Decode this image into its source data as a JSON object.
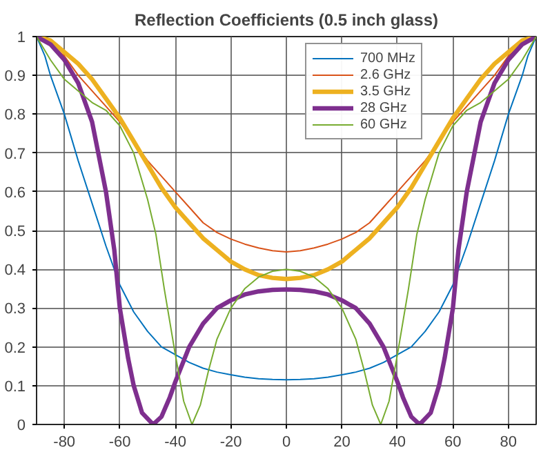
{
  "chart_data": {
    "type": "line",
    "title": "Reflection Coefficients (0.5 inch glass)",
    "xlim": [
      -90,
      90
    ],
    "ylim": [
      0,
      1
    ],
    "xticks": [
      -80,
      -60,
      -40,
      -20,
      0,
      20,
      40,
      60,
      80
    ],
    "yticks": [
      0,
      0.1,
      0.2,
      0.3,
      0.4,
      0.5,
      0.6,
      0.7,
      0.8,
      0.9,
      1
    ],
    "grid": true,
    "legend": "top right",
    "marker": "none",
    "line_style": "solid",
    "series": [
      {
        "name": "700 MHz",
        "color": "#0072bd",
        "x": [
          -90,
          -87,
          -85,
          -80,
          -75,
          -70,
          -65,
          -60,
          -55,
          -50,
          -45,
          -40,
          -35,
          -30,
          -25,
          -20,
          -15,
          -10,
          -5,
          0,
          5,
          10,
          15,
          20,
          25,
          30,
          35,
          40,
          45,
          50,
          55,
          60,
          65,
          70,
          75,
          80,
          85,
          87,
          90
        ],
        "values": [
          1,
          0.95,
          0.9,
          0.8,
          0.68,
          0.57,
          0.46,
          0.36,
          0.29,
          0.24,
          0.2,
          0.18,
          0.16,
          0.145,
          0.135,
          0.128,
          0.122,
          0.118,
          0.116,
          0.115,
          0.116,
          0.118,
          0.122,
          0.128,
          0.135,
          0.145,
          0.16,
          0.18,
          0.2,
          0.24,
          0.29,
          0.36,
          0.46,
          0.57,
          0.68,
          0.8,
          0.9,
          0.95,
          1
        ]
      },
      {
        "name": "2.6 GHz",
        "color": "#d95319",
        "x": [
          -90,
          -85,
          -80,
          -75,
          -70,
          -65,
          -60,
          -55,
          -50,
          -45,
          -40,
          -35,
          -30,
          -25,
          -20,
          -15,
          -10,
          -5,
          0,
          5,
          10,
          15,
          20,
          25,
          30,
          35,
          40,
          45,
          50,
          55,
          60,
          65,
          70,
          75,
          80,
          85,
          90
        ],
        "values": [
          1,
          0.98,
          0.95,
          0.9,
          0.86,
          0.82,
          0.78,
          0.73,
          0.68,
          0.64,
          0.6,
          0.56,
          0.52,
          0.495,
          0.478,
          0.465,
          0.455,
          0.448,
          0.445,
          0.448,
          0.455,
          0.465,
          0.478,
          0.495,
          0.52,
          0.56,
          0.6,
          0.64,
          0.68,
          0.73,
          0.78,
          0.82,
          0.86,
          0.9,
          0.95,
          0.98,
          1
        ]
      },
      {
        "name": "3.5 GHz",
        "color": "#edb120",
        "x": [
          -90,
          -85,
          -80,
          -75,
          -70,
          -65,
          -60,
          -55,
          -50,
          -45,
          -40,
          -35,
          -30,
          -25,
          -20,
          -15,
          -10,
          -5,
          0,
          5,
          10,
          15,
          20,
          25,
          30,
          35,
          40,
          45,
          50,
          55,
          60,
          65,
          70,
          75,
          80,
          85,
          90
        ],
        "values": [
          1,
          0.99,
          0.96,
          0.93,
          0.89,
          0.84,
          0.79,
          0.73,
          0.67,
          0.61,
          0.56,
          0.52,
          0.48,
          0.45,
          0.42,
          0.4,
          0.385,
          0.378,
          0.375,
          0.378,
          0.385,
          0.4,
          0.42,
          0.45,
          0.48,
          0.52,
          0.56,
          0.61,
          0.67,
          0.73,
          0.79,
          0.84,
          0.89,
          0.93,
          0.96,
          0.99,
          1
        ]
      },
      {
        "name": "28 GHz",
        "color": "#7e2f8e",
        "x": [
          -90,
          -85,
          -80,
          -75,
          -70,
          -65,
          -62,
          -60,
          -57,
          -55,
          -52,
          -48,
          -45,
          -42,
          -40,
          -35,
          -30,
          -25,
          -20,
          -15,
          -10,
          -5,
          0,
          5,
          10,
          15,
          20,
          25,
          30,
          35,
          40,
          42,
          45,
          48,
          52,
          55,
          57,
          60,
          62,
          65,
          70,
          75,
          80,
          85,
          90
        ],
        "values": [
          1,
          0.98,
          0.94,
          0.88,
          0.78,
          0.6,
          0.45,
          0.3,
          0.17,
          0.1,
          0.03,
          0,
          0.02,
          0.07,
          0.11,
          0.2,
          0.26,
          0.3,
          0.32,
          0.335,
          0.343,
          0.347,
          0.348,
          0.347,
          0.343,
          0.335,
          0.32,
          0.3,
          0.26,
          0.2,
          0.11,
          0.07,
          0.02,
          0,
          0.03,
          0.1,
          0.17,
          0.3,
          0.45,
          0.6,
          0.78,
          0.88,
          0.94,
          0.98,
          1
        ]
      },
      {
        "name": "60 GHz",
        "color": "#77ac30",
        "x": [
          -90,
          -85,
          -80,
          -75,
          -70,
          -65,
          -60,
          -55,
          -50,
          -47,
          -44,
          -40,
          -37,
          -34,
          -31,
          -28,
          -25,
          -20,
          -15,
          -10,
          -5,
          0,
          5,
          10,
          15,
          20,
          25,
          28,
          31,
          34,
          37,
          40,
          44,
          47,
          50,
          55,
          60,
          65,
          70,
          75,
          80,
          85,
          90
        ],
        "values": [
          1,
          0.94,
          0.89,
          0.86,
          0.83,
          0.81,
          0.77,
          0.7,
          0.58,
          0.49,
          0.35,
          0.18,
          0.06,
          0,
          0.05,
          0.14,
          0.22,
          0.3,
          0.35,
          0.38,
          0.395,
          0.4,
          0.395,
          0.38,
          0.35,
          0.3,
          0.22,
          0.14,
          0.05,
          0,
          0.06,
          0.18,
          0.35,
          0.49,
          0.58,
          0.7,
          0.77,
          0.81,
          0.83,
          0.86,
          0.89,
          0.94,
          1
        ]
      }
    ]
  }
}
